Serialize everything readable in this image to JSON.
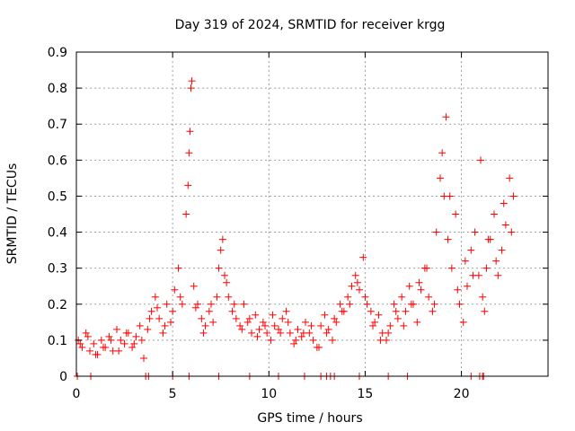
{
  "chart_data": {
    "type": "scatter",
    "title": "Day 319 of 2024, SRMTID for receiver krgg",
    "xlabel": "GPS time / hours",
    "ylabel": "SRMTID / TECUs",
    "xlim": [
      0,
      24.5
    ],
    "ylim": [
      0,
      0.9
    ],
    "x_ticks": [
      0,
      5,
      10,
      15,
      20
    ],
    "x_tick_labels": [
      "0",
      "5",
      "10",
      "15",
      "20"
    ],
    "y_ticks": [
      0,
      0.1,
      0.2,
      0.3,
      0.4,
      0.5,
      0.6,
      0.7,
      0.8,
      0.9
    ],
    "y_tick_labels": [
      "0",
      "0.1",
      "0.2",
      "0.3",
      "0.4",
      "0.5",
      "0.6",
      "0.7",
      "0.8",
      "0.9"
    ],
    "grid": true,
    "marker": "plus",
    "color": "#ff0000",
    "series": [
      {
        "name": "SRMTID",
        "x": [
          0.1,
          0.3,
          0.5,
          0.7,
          0.9,
          1.1,
          1.3,
          1.5,
          1.7,
          1.9,
          2.1,
          2.3,
          2.5,
          2.7,
          2.9,
          3.1,
          3.3,
          3.5,
          3.7,
          3.9,
          4.1,
          4.3,
          4.5,
          4.7,
          4.9,
          5.1,
          5.3,
          5.5,
          5.7,
          5.8,
          5.85,
          5.9,
          5.95,
          6.0,
          6.1,
          6.3,
          6.5,
          6.7,
          6.9,
          7.1,
          7.3,
          7.5,
          7.6,
          7.7,
          7.9,
          8.1,
          8.3,
          8.5,
          8.7,
          8.9,
          9.1,
          9.3,
          9.5,
          9.7,
          9.9,
          10.1,
          10.3,
          10.5,
          10.7,
          10.9,
          11.1,
          11.3,
          11.5,
          11.7,
          11.9,
          12.1,
          12.3,
          12.5,
          12.7,
          12.9,
          13.1,
          13.3,
          13.5,
          13.7,
          13.9,
          14.1,
          14.3,
          14.5,
          14.7,
          14.9,
          15.1,
          15.3,
          15.5,
          15.7,
          15.9,
          16.1,
          16.3,
          16.5,
          16.7,
          16.9,
          17.1,
          17.3,
          17.5,
          17.7,
          17.9,
          18.1,
          18.3,
          18.5,
          18.7,
          18.9,
          19.0,
          19.1,
          19.2,
          19.3,
          19.5,
          19.7,
          19.9,
          20.1,
          20.3,
          20.5,
          20.7,
          20.9,
          21.1,
          21.2,
          21.3,
          21.5,
          21.7,
          21.9,
          22.1,
          22.3,
          22.5,
          22.7,
          0.2,
          0.6,
          1.0,
          1.4,
          1.8,
          2.2,
          2.6,
          3.0,
          3.4,
          3.8,
          4.2,
          4.6,
          5.0,
          5.4,
          6.2,
          6.6,
          7.0,
          7.4,
          7.8,
          8.2,
          8.6,
          9.0,
          9.4,
          9.8,
          10.2,
          10.6,
          11.0,
          11.4,
          11.8,
          12.2,
          12.6,
          13.0,
          13.4,
          13.8,
          14.2,
          14.6,
          15.0,
          15.4,
          15.8,
          16.2,
          16.6,
          17.0,
          17.4,
          17.8,
          18.2,
          18.6,
          19.4,
          19.8,
          20.2,
          20.6,
          21.0,
          21.4,
          21.8,
          22.2,
          22.6,
          0.05,
          0.75,
          3.6,
          3.75,
          5.0,
          5.85,
          7.4,
          9.0,
          10.5,
          11.85,
          12.7,
          13.0,
          13.2,
          13.4,
          14.7,
          16.2,
          17.2,
          20.5,
          20.95,
          21.1,
          21.15
        ],
        "y": [
          0.1,
          0.08,
          0.12,
          0.07,
          0.09,
          0.06,
          0.1,
          0.08,
          0.11,
          0.07,
          0.13,
          0.1,
          0.09,
          0.12,
          0.08,
          0.11,
          0.14,
          0.05,
          0.13,
          0.18,
          0.22,
          0.16,
          0.12,
          0.2,
          0.15,
          0.24,
          0.3,
          0.2,
          0.45,
          0.53,
          0.62,
          0.68,
          0.8,
          0.82,
          0.25,
          0.2,
          0.16,
          0.14,
          0.18,
          0.15,
          0.22,
          0.35,
          0.38,
          0.28,
          0.22,
          0.18,
          0.16,
          0.14,
          0.2,
          0.15,
          0.12,
          0.17,
          0.13,
          0.15,
          0.12,
          0.1,
          0.14,
          0.13,
          0.16,
          0.18,
          0.12,
          0.09,
          0.13,
          0.11,
          0.15,
          0.12,
          0.1,
          0.08,
          0.14,
          0.17,
          0.13,
          0.1,
          0.15,
          0.2,
          0.18,
          0.22,
          0.25,
          0.28,
          0.24,
          0.33,
          0.2,
          0.18,
          0.15,
          0.17,
          0.12,
          0.1,
          0.14,
          0.2,
          0.16,
          0.22,
          0.18,
          0.25,
          0.2,
          0.15,
          0.24,
          0.3,
          0.22,
          0.18,
          0.4,
          0.55,
          0.62,
          0.5,
          0.72,
          0.38,
          0.3,
          0.45,
          0.2,
          0.15,
          0.25,
          0.35,
          0.4,
          0.28,
          0.22,
          0.18,
          0.3,
          0.38,
          0.45,
          0.28,
          0.35,
          0.42,
          0.55,
          0.5,
          0.09,
          0.11,
          0.06,
          0.08,
          0.1,
          0.07,
          0.12,
          0.09,
          0.1,
          0.16,
          0.19,
          0.14,
          0.18,
          0.22,
          0.19,
          0.12,
          0.2,
          0.3,
          0.26,
          0.2,
          0.13,
          0.16,
          0.11,
          0.14,
          0.17,
          0.12,
          0.15,
          0.1,
          0.12,
          0.14,
          0.08,
          0.12,
          0.16,
          0.18,
          0.2,
          0.26,
          0.22,
          0.14,
          0.1,
          0.12,
          0.18,
          0.14,
          0.2,
          0.26,
          0.3,
          0.2,
          0.5,
          0.24,
          0.32,
          0.28,
          0.6,
          0.38,
          0.32,
          0.48,
          0.4,
          0.0,
          0.0,
          0.0,
          0.0,
          0.0,
          0.0,
          0.0,
          0.0,
          0.0,
          0.0,
          0.0,
          0.0,
          0.0,
          0.0,
          0.0,
          0.0,
          0.0,
          0.0,
          0.0,
          0.0,
          0.0
        ]
      }
    ]
  }
}
